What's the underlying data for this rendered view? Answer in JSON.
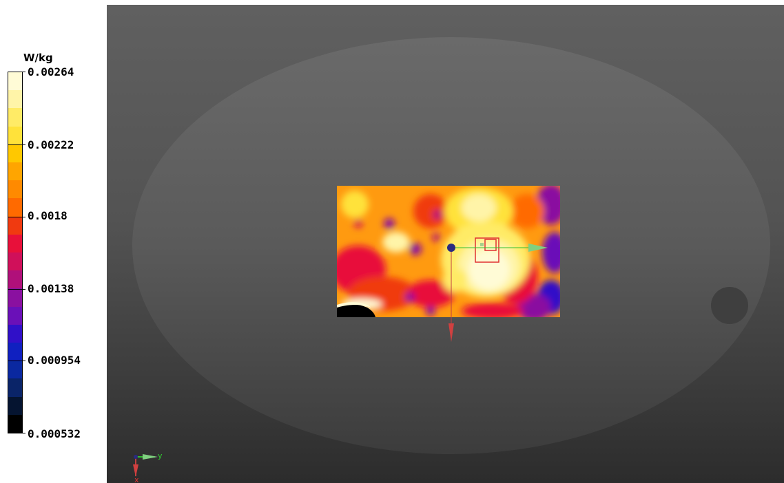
{
  "colorbar": {
    "unit": "W/kg",
    "ticks": [
      "0.00264",
      "0.00222",
      "0.0018",
      "0.00138",
      "0.000954",
      "0.000532"
    ],
    "colors_top_to_bottom": [
      "#fffbd6",
      "#fff4a8",
      "#ffeb66",
      "#ffe23a",
      "#ffc800",
      "#ffa500",
      "#ff8a00",
      "#ff6a00",
      "#f03a10",
      "#e8103a",
      "#d0105a",
      "#b0107a",
      "#8a10a0",
      "#6a10b8",
      "#3010c8",
      "#1020c0",
      "#0a28a0",
      "#0a2468",
      "#051430",
      "#000000"
    ]
  },
  "viewport": {
    "axis_triad": {
      "y_label": "y",
      "x_label": "x"
    }
  }
}
